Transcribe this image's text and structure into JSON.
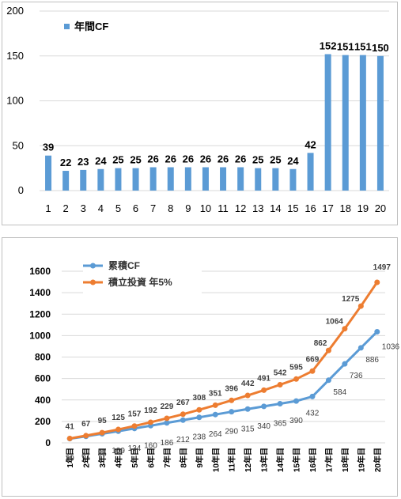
{
  "colors": {
    "bar": "#5b9bd5",
    "cumulative": "#5b9bd5",
    "investment": "#ed7d31",
    "grid": "#d9d9d9"
  },
  "chart_data": [
    {
      "type": "bar",
      "legend_position": "top-left",
      "categories": [
        "1",
        "2",
        "3",
        "4",
        "5",
        "6",
        "7",
        "8",
        "9",
        "10",
        "11",
        "12",
        "13",
        "14",
        "15",
        "16",
        "17",
        "18",
        "19",
        "20"
      ],
      "series": [
        {
          "name": "年間CF",
          "values": [
            39,
            22,
            23,
            24,
            25,
            25,
            26,
            26,
            26,
            26,
            26,
            26,
            25,
            25,
            24,
            42,
            152,
            151,
            151,
            150
          ]
        }
      ],
      "ylim": [
        0,
        200
      ],
      "yticks": [
        "0",
        "50",
        "100",
        "150",
        "200"
      ],
      "grid": true
    },
    {
      "type": "line",
      "legend_position": "top-left",
      "categories": [
        "1年目",
        "2年目",
        "3年目",
        "4年目",
        "5年目",
        "6年目",
        "7年目",
        "8年目",
        "9年目",
        "10年目",
        "11年目",
        "12年目",
        "13年目",
        "14年目",
        "15年目",
        "16年目",
        "17年目",
        "18年目",
        "19年目",
        "20年目"
      ],
      "series": [
        {
          "name": "累積CF",
          "values": [
            39,
            61,
            85,
            109,
            134,
            160,
            186,
            212,
            238,
            264,
            290,
            315,
            340,
            365,
            390,
            432,
            584,
            736,
            886,
            1036
          ]
        },
        {
          "name": "積立投資 年5%",
          "values": [
            41,
            67,
            95,
            125,
            157,
            192,
            229,
            267,
            308,
            351,
            396,
            442,
            491,
            542,
            595,
            669,
            862,
            1064,
            1275,
            1497
          ]
        }
      ],
      "ylim": [
        0,
        1600
      ],
      "yticks": [
        "0",
        "200",
        "400",
        "600",
        "800",
        "1000",
        "1200",
        "1400",
        "1600"
      ],
      "grid": true
    }
  ]
}
